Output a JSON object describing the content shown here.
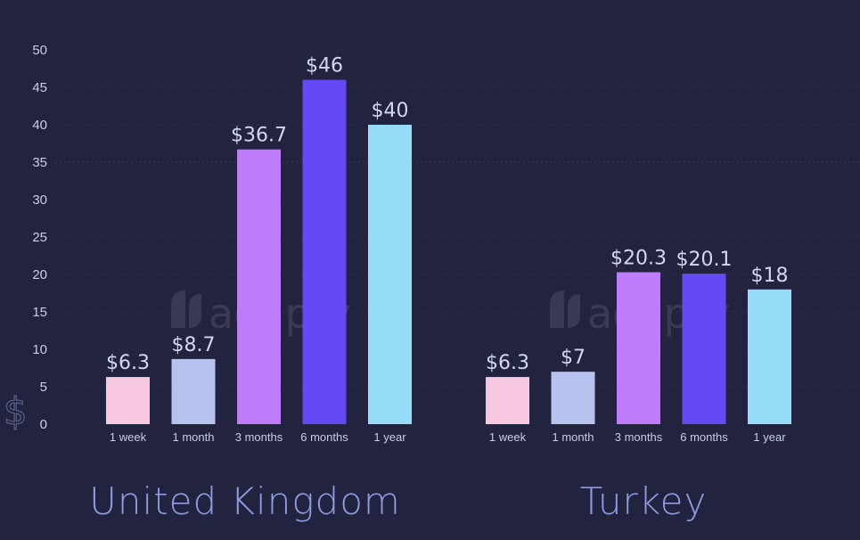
{
  "chart_data": {
    "type": "bar",
    "ylabel": "$",
    "ylim": [
      0,
      50
    ],
    "yticks": [
      0,
      5,
      10,
      15,
      20,
      25,
      30,
      35,
      40,
      45,
      50
    ],
    "grid": true,
    "watermark": "adapty",
    "colors": [
      "#f7c8e0",
      "#b7c3ee",
      "#bf7cf8",
      "#6549f5",
      "#95dcf7"
    ],
    "panels": [
      {
        "title": "United Kingdom",
        "categories": [
          "1 week",
          "1 month",
          "3 months",
          "6 months",
          "1 year"
        ],
        "values": [
          6.3,
          8.7,
          36.7,
          46,
          40
        ],
        "value_labels": [
          "$6.3",
          "$8.7",
          "$36.7",
          "$46",
          "$40"
        ]
      },
      {
        "title": "Turkey",
        "categories": [
          "1 week",
          "1 month",
          "3 months",
          "6 months",
          "1 year"
        ],
        "values": [
          6.3,
          7,
          20.3,
          20.1,
          18
        ],
        "value_labels": [
          "$6.3",
          "$7",
          "$20.3",
          "$20.1",
          "$18"
        ]
      }
    ]
  }
}
